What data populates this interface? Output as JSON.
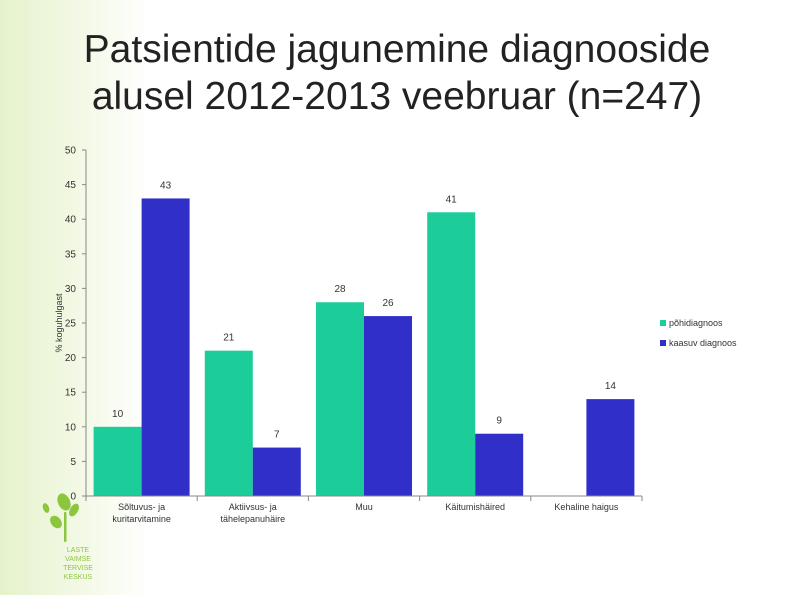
{
  "slide": {
    "title_line1": "Patsientide jagunemine diagnooside",
    "title_line2": "alusel 2012-2013 veebruar (n=247)"
  },
  "logo": {
    "lines": [
      "LASTE",
      "VAIMSE",
      "TERVISE",
      "KESKUS"
    ]
  },
  "colors": {
    "primary": "#1ccc99",
    "secondary": "#3030c8",
    "logo": "#8cc63f"
  },
  "chart_data": {
    "type": "bar",
    "title": "",
    "xlabel": "",
    "ylabel": "% koguhulgast",
    "ylim": [
      0,
      50
    ],
    "yticks": [
      0,
      5,
      10,
      15,
      20,
      25,
      30,
      35,
      40,
      45,
      50
    ],
    "categories": [
      "Sõltuvus- ja kuritarvitamine",
      "Aktiivsus- ja tähelepanuhäire",
      "Muu",
      "Käitumishäired",
      "Kehaline haigus"
    ],
    "category_lines": [
      [
        "Sõltuvus- ja",
        "kuritarvitamine"
      ],
      [
        "Aktiivsus- ja",
        "tähelepanuhäire"
      ],
      [
        "Muu"
      ],
      [
        "Käitumishäired"
      ],
      [
        "Kehaline haigus"
      ]
    ],
    "series": [
      {
        "name": "põhidiagnoos",
        "values": [
          10,
          21,
          28,
          41,
          null
        ],
        "color": "#1ccc99"
      },
      {
        "name": "kaasuv diagnoos",
        "values": [
          43,
          7,
          26,
          9,
          14
        ],
        "color": "#3030c8"
      }
    ],
    "grid": true,
    "legend_position": "right"
  }
}
